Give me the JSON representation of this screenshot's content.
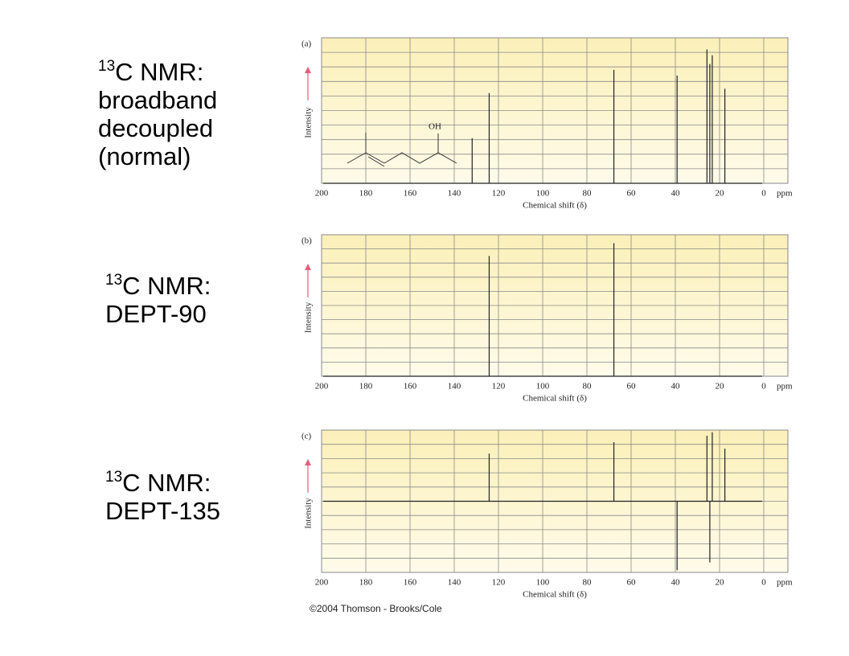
{
  "panel_labels": [
    {
      "isotope": "13",
      "lines": [
        "C NMR:",
        "broadband",
        "decoupled",
        "(normal)"
      ]
    },
    {
      "isotope": "13",
      "lines": [
        "C NMR:",
        "DEPT-90"
      ]
    },
    {
      "isotope": "13",
      "lines": [
        "C NMR:",
        "DEPT-135"
      ]
    }
  ],
  "copyright": "©2004 Thomson - Brooks/Cole",
  "chart_data": [
    {
      "type": "spectrum",
      "panel": "(a)",
      "y_label": "Intensity",
      "x_label": "Chemical shift (δ)",
      "x_unit": "ppm",
      "annotation": "OH",
      "xlim": [
        200,
        0
      ],
      "xticks": [
        200,
        180,
        160,
        140,
        120,
        100,
        80,
        60,
        40,
        20,
        0
      ],
      "ylim": [
        0,
        100
      ],
      "grid": true,
      "color": "#222222",
      "x": [
        131.9,
        124.2,
        67.8,
        39.2,
        25.7,
        24.4,
        23.3,
        17.6
      ],
      "values": [
        31,
        62,
        78,
        74,
        92,
        82,
        88,
        65
      ]
    },
    {
      "type": "spectrum",
      "panel": "(b)",
      "y_label": "Intensity",
      "x_label": "Chemical shift (δ)",
      "x_unit": "ppm",
      "xlim": [
        200,
        0
      ],
      "xticks": [
        200,
        180,
        160,
        140,
        120,
        100,
        80,
        60,
        40,
        20,
        0
      ],
      "ylim": [
        0,
        100
      ],
      "grid": true,
      "color": "#222222",
      "x": [
        124.2,
        67.8
      ],
      "values": [
        85,
        94
      ]
    },
    {
      "type": "spectrum",
      "panel": "(c)",
      "y_label": "Intensity",
      "x_label": "Chemical shift (δ)",
      "x_unit": "ppm",
      "xlim": [
        200,
        0
      ],
      "xticks": [
        200,
        180,
        160,
        140,
        120,
        100,
        80,
        60,
        40,
        20,
        0
      ],
      "ylim": [
        -100,
        100
      ],
      "grid": true,
      "color": "#222222",
      "x": [
        124.2,
        67.8,
        39.2,
        25.7,
        24.4,
        23.3,
        17.6
      ],
      "values": [
        67,
        83,
        -97,
        92,
        -86,
        97,
        74
      ]
    }
  ]
}
